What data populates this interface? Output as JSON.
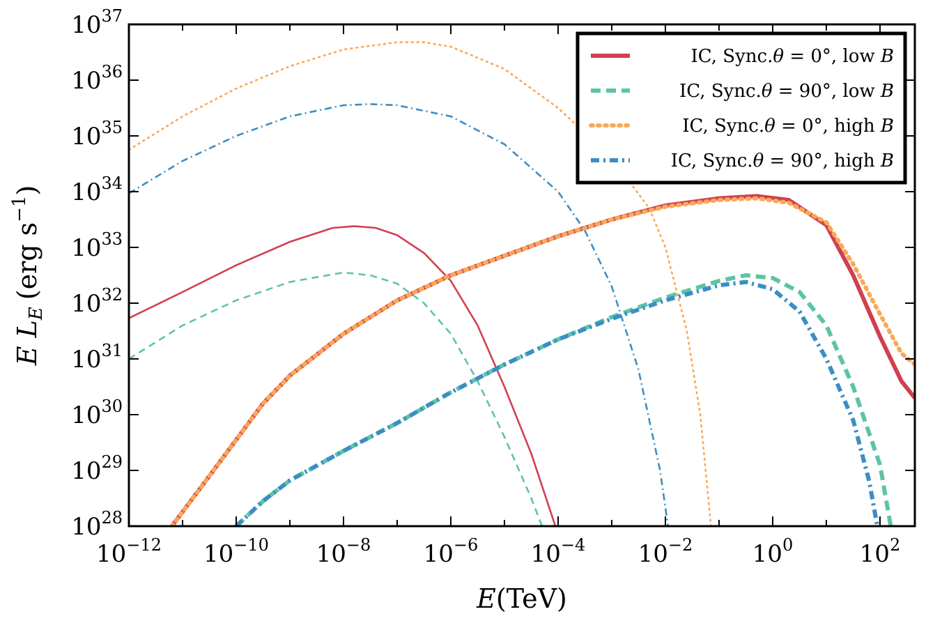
{
  "chart_data": {
    "type": "line",
    "title": "",
    "xlabel": {
      "symbol": "E",
      "unit": "(TeV)"
    },
    "ylabel": {
      "symbol": "E L",
      "sub": "E",
      "unit": "(erg s",
      "unit_sup": "−1",
      "unit_close": ")"
    },
    "xscale": "log",
    "yscale": "log",
    "xlim_exp": [
      -12,
      2.65
    ],
    "ylim_exp": [
      28,
      37
    ],
    "x_ticks": [
      {
        "exp": -12,
        "base": "10",
        "sup": "−12"
      },
      {
        "exp": -10,
        "base": "10",
        "sup": "−10"
      },
      {
        "exp": -8,
        "base": "10",
        "sup": "−8"
      },
      {
        "exp": -6,
        "base": "10",
        "sup": "−6"
      },
      {
        "exp": -4,
        "base": "10",
        "sup": "−4"
      },
      {
        "exp": -2,
        "base": "10",
        "sup": "−2"
      },
      {
        "exp": 0,
        "base": "10",
        "sup": "0"
      },
      {
        "exp": 2,
        "base": "10",
        "sup": "2"
      }
    ],
    "y_ticks": [
      {
        "exp": 28,
        "base": "10",
        "sup": "28"
      },
      {
        "exp": 29,
        "base": "10",
        "sup": "29"
      },
      {
        "exp": 30,
        "base": "10",
        "sup": "30"
      },
      {
        "exp": 31,
        "base": "10",
        "sup": "31"
      },
      {
        "exp": 32,
        "base": "10",
        "sup": "32"
      },
      {
        "exp": 33,
        "base": "10",
        "sup": "33"
      },
      {
        "exp": 34,
        "base": "10",
        "sup": "34"
      },
      {
        "exp": 35,
        "base": "10",
        "sup": "35"
      },
      {
        "exp": 36,
        "base": "10",
        "sup": "36"
      },
      {
        "exp": 37,
        "base": "10",
        "sup": "37"
      }
    ],
    "legend_position": "top-right",
    "series": [
      {
        "id": "low0",
        "color": "#d1404f",
        "dash": "solid",
        "legend": {
          "prefix": "IC, Sync.",
          "theta": "θ",
          "rel": " = 0°, low ",
          "b": "B"
        },
        "sync": [
          [
            -12,
            31.73
          ],
          [
            -11,
            32.2
          ],
          [
            -10,
            32.68
          ],
          [
            -9,
            33.1
          ],
          [
            -8.2,
            33.35
          ],
          [
            -7.8,
            33.38
          ],
          [
            -7.4,
            33.35
          ],
          [
            -7,
            33.22
          ],
          [
            -6.5,
            32.9
          ],
          [
            -6,
            32.4
          ],
          [
            -5.5,
            31.6
          ],
          [
            -5,
            30.5
          ],
          [
            -4.5,
            29.3
          ],
          [
            -4.05,
            28
          ]
        ],
        "ic": [
          [
            -11.2,
            28
          ],
          [
            -10.5,
            28.9
          ],
          [
            -10,
            29.55
          ],
          [
            -9.5,
            30.2
          ],
          [
            -9,
            30.7
          ],
          [
            -8,
            31.45
          ],
          [
            -7,
            32.05
          ],
          [
            -6,
            32.5
          ],
          [
            -5,
            32.85
          ],
          [
            -4,
            33.2
          ],
          [
            -3,
            33.5
          ],
          [
            -2,
            33.75
          ],
          [
            -1,
            33.88
          ],
          [
            -0.3,
            33.92
          ],
          [
            0.3,
            33.85
          ],
          [
            1,
            33.4
          ],
          [
            1.5,
            32.5
          ],
          [
            2,
            31.4
          ],
          [
            2.4,
            30.6
          ],
          [
            2.65,
            30.3
          ]
        ]
      },
      {
        "id": "low90",
        "color": "#5cc4a6",
        "dash": "dashed",
        "legend": {
          "prefix": "IC, Sync.",
          "theta": "θ",
          "rel": " = 90°, low ",
          "b": "B"
        },
        "sync": [
          [
            -12,
            31.0
          ],
          [
            -11,
            31.6
          ],
          [
            -10,
            32.05
          ],
          [
            -9,
            32.38
          ],
          [
            -8,
            32.55
          ],
          [
            -7.5,
            32.5
          ],
          [
            -7,
            32.35
          ],
          [
            -6.5,
            32.0
          ],
          [
            -6,
            31.45
          ],
          [
            -5.5,
            30.6
          ],
          [
            -5,
            29.6
          ],
          [
            -4.5,
            28.5
          ],
          [
            -4.3,
            28
          ]
        ],
        "ic": [
          [
            -10,
            28
          ],
          [
            -9.5,
            28.45
          ],
          [
            -9,
            28.82
          ],
          [
            -8,
            29.35
          ],
          [
            -7,
            29.85
          ],
          [
            -6,
            30.4
          ],
          [
            -5,
            30.9
          ],
          [
            -4,
            31.35
          ],
          [
            -3,
            31.75
          ],
          [
            -2,
            32.1
          ],
          [
            -1,
            32.4
          ],
          [
            -0.5,
            32.5
          ],
          [
            0,
            32.45
          ],
          [
            0.5,
            32.2
          ],
          [
            1,
            31.6
          ],
          [
            1.5,
            30.5
          ],
          [
            2,
            29.1
          ],
          [
            2.2,
            28
          ]
        ]
      },
      {
        "id": "high0",
        "color": "#faa858",
        "dash": "dotted",
        "legend": {
          "prefix": "IC, Sync.",
          "theta": "θ",
          "rel": " = 0°, high ",
          "b": "B"
        },
        "sync": [
          [
            -12,
            34.75
          ],
          [
            -11,
            35.35
          ],
          [
            -10,
            35.85
          ],
          [
            -9,
            36.25
          ],
          [
            -8,
            36.55
          ],
          [
            -7,
            36.68
          ],
          [
            -6.5,
            36.68
          ],
          [
            -6,
            36.6
          ],
          [
            -5,
            36.2
          ],
          [
            -4,
            35.5
          ],
          [
            -3,
            34.6
          ],
          [
            -2.3,
            33.7
          ],
          [
            -2,
            33.0
          ],
          [
            -1.6,
            31.5
          ],
          [
            -1.35,
            30
          ],
          [
            -1.15,
            28
          ]
        ],
        "ic": [
          [
            -11.2,
            28
          ],
          [
            -10.5,
            28.9
          ],
          [
            -10,
            29.55
          ],
          [
            -9.5,
            30.2
          ],
          [
            -9,
            30.7
          ],
          [
            -8,
            31.45
          ],
          [
            -7,
            32.05
          ],
          [
            -6,
            32.5
          ],
          [
            -5,
            32.85
          ],
          [
            -4,
            33.2
          ],
          [
            -3,
            33.5
          ],
          [
            -2,
            33.73
          ],
          [
            -1,
            33.85
          ],
          [
            -0.3,
            33.88
          ],
          [
            0.3,
            33.8
          ],
          [
            1,
            33.45
          ],
          [
            1.5,
            32.7
          ],
          [
            2,
            31.8
          ],
          [
            2.4,
            31.1
          ],
          [
            2.65,
            30.9
          ]
        ]
      },
      {
        "id": "high90",
        "color": "#3a8ec4",
        "dash": "dashdot",
        "legend": {
          "prefix": "IC, Sync.",
          "theta": "θ",
          "rel": " = 90°, high ",
          "b": "B"
        },
        "sync": [
          [
            -12,
            33.97
          ],
          [
            -11,
            34.55
          ],
          [
            -10,
            35.0
          ],
          [
            -9,
            35.35
          ],
          [
            -8,
            35.55
          ],
          [
            -7.5,
            35.57
          ],
          [
            -7,
            35.55
          ],
          [
            -6,
            35.35
          ],
          [
            -5,
            34.85
          ],
          [
            -4,
            34.0
          ],
          [
            -3.5,
            33.3
          ],
          [
            -3,
            32.3
          ],
          [
            -2.5,
            30.8
          ],
          [
            -2.1,
            29.0
          ],
          [
            -1.95,
            28
          ]
        ],
        "ic": [
          [
            -10,
            28
          ],
          [
            -9.5,
            28.45
          ],
          [
            -9,
            28.82
          ],
          [
            -8,
            29.35
          ],
          [
            -7,
            29.85
          ],
          [
            -6,
            30.4
          ],
          [
            -5,
            30.9
          ],
          [
            -4,
            31.35
          ],
          [
            -3,
            31.72
          ],
          [
            -2,
            32.05
          ],
          [
            -1,
            32.32
          ],
          [
            -0.5,
            32.38
          ],
          [
            0,
            32.25
          ],
          [
            0.5,
            31.85
          ],
          [
            1,
            31.0
          ],
          [
            1.5,
            29.9
          ],
          [
            1.8,
            28.8
          ],
          [
            1.95,
            28
          ]
        ]
      }
    ]
  }
}
